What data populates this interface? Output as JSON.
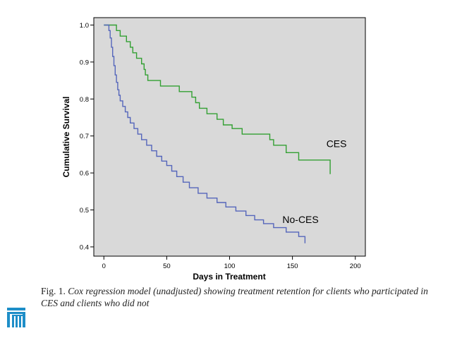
{
  "chart_data": {
    "type": "line",
    "xlabel": "Days in Treatment",
    "ylabel": "Cumulative Survival",
    "xlim": [
      -8,
      208
    ],
    "ylim": [
      0.375,
      1.02
    ],
    "x_ticks": [
      0,
      50,
      100,
      150,
      200
    ],
    "y_ticks": [
      0.4,
      0.5,
      0.6,
      0.7,
      0.8,
      0.9,
      1.0
    ],
    "x_tick_labels": [
      "0",
      "50",
      "100",
      "150",
      "200"
    ],
    "y_tick_labels": [
      "0.4",
      "0.5",
      "0.6",
      "0.7",
      "0.8",
      "0.9",
      "1.0"
    ],
    "grid": false,
    "background": "#d9d9d9",
    "series": [
      {
        "name": "CES",
        "color": "#33a033",
        "label_at": [
          177,
          0.67
        ],
        "step_points": [
          [
            0,
            1.0
          ],
          [
            10,
            1.0
          ],
          [
            10,
            0.985
          ],
          [
            13,
            0.985
          ],
          [
            13,
            0.97
          ],
          [
            18,
            0.97
          ],
          [
            18,
            0.955
          ],
          [
            21,
            0.955
          ],
          [
            21,
            0.94
          ],
          [
            23,
            0.94
          ],
          [
            23,
            0.925
          ],
          [
            26,
            0.925
          ],
          [
            26,
            0.91
          ],
          [
            30,
            0.91
          ],
          [
            30,
            0.895
          ],
          [
            32,
            0.895
          ],
          [
            32,
            0.88
          ],
          [
            33,
            0.88
          ],
          [
            33,
            0.865
          ],
          [
            35,
            0.865
          ],
          [
            35,
            0.85
          ],
          [
            45,
            0.85
          ],
          [
            45,
            0.835
          ],
          [
            60,
            0.835
          ],
          [
            60,
            0.82
          ],
          [
            70,
            0.82
          ],
          [
            70,
            0.805
          ],
          [
            73,
            0.805
          ],
          [
            73,
            0.79
          ],
          [
            76,
            0.79
          ],
          [
            76,
            0.775
          ],
          [
            82,
            0.775
          ],
          [
            82,
            0.76
          ],
          [
            90,
            0.76
          ],
          [
            90,
            0.745
          ],
          [
            95,
            0.745
          ],
          [
            95,
            0.73
          ],
          [
            102,
            0.73
          ],
          [
            102,
            0.72
          ],
          [
            110,
            0.72
          ],
          [
            110,
            0.705
          ],
          [
            132,
            0.705
          ],
          [
            132,
            0.69
          ],
          [
            135,
            0.69
          ],
          [
            135,
            0.675
          ],
          [
            145,
            0.675
          ],
          [
            145,
            0.655
          ],
          [
            155,
            0.655
          ],
          [
            155,
            0.635
          ],
          [
            180,
            0.635
          ],
          [
            180,
            0.597
          ]
        ]
      },
      {
        "name": "No-CES",
        "color": "#5566bb",
        "label_at": [
          142,
          0.465
        ],
        "step_points": [
          [
            0,
            1.0
          ],
          [
            4,
            1.0
          ],
          [
            4,
            0.985
          ],
          [
            5,
            0.985
          ],
          [
            5,
            0.965
          ],
          [
            6,
            0.965
          ],
          [
            6,
            0.94
          ],
          [
            7,
            0.94
          ],
          [
            7,
            0.915
          ],
          [
            8,
            0.915
          ],
          [
            8,
            0.89
          ],
          [
            9,
            0.89
          ],
          [
            9,
            0.865
          ],
          [
            10,
            0.865
          ],
          [
            10,
            0.845
          ],
          [
            11,
            0.845
          ],
          [
            11,
            0.825
          ],
          [
            12,
            0.825
          ],
          [
            12,
            0.81
          ],
          [
            13,
            0.81
          ],
          [
            13,
            0.795
          ],
          [
            15,
            0.795
          ],
          [
            15,
            0.78
          ],
          [
            17,
            0.78
          ],
          [
            17,
            0.765
          ],
          [
            19,
            0.765
          ],
          [
            19,
            0.75
          ],
          [
            21,
            0.75
          ],
          [
            21,
            0.735
          ],
          [
            24,
            0.735
          ],
          [
            24,
            0.72
          ],
          [
            27,
            0.72
          ],
          [
            27,
            0.705
          ],
          [
            30,
            0.705
          ],
          [
            30,
            0.69
          ],
          [
            34,
            0.69
          ],
          [
            34,
            0.675
          ],
          [
            38,
            0.675
          ],
          [
            38,
            0.66
          ],
          [
            42,
            0.66
          ],
          [
            42,
            0.645
          ],
          [
            46,
            0.645
          ],
          [
            46,
            0.632
          ],
          [
            50,
            0.632
          ],
          [
            50,
            0.62
          ],
          [
            54,
            0.62
          ],
          [
            54,
            0.605
          ],
          [
            58,
            0.605
          ],
          [
            58,
            0.59
          ],
          [
            63,
            0.59
          ],
          [
            63,
            0.575
          ],
          [
            68,
            0.575
          ],
          [
            68,
            0.56
          ],
          [
            75,
            0.56
          ],
          [
            75,
            0.545
          ],
          [
            82,
            0.545
          ],
          [
            82,
            0.532
          ],
          [
            90,
            0.532
          ],
          [
            90,
            0.52
          ],
          [
            97,
            0.52
          ],
          [
            97,
            0.508
          ],
          [
            105,
            0.508
          ],
          [
            105,
            0.497
          ],
          [
            113,
            0.497
          ],
          [
            113,
            0.485
          ],
          [
            120,
            0.485
          ],
          [
            120,
            0.473
          ],
          [
            127,
            0.473
          ],
          [
            127,
            0.463
          ],
          [
            135,
            0.463
          ],
          [
            135,
            0.452
          ],
          [
            145,
            0.452
          ],
          [
            145,
            0.44
          ],
          [
            155,
            0.44
          ],
          [
            155,
            0.428
          ],
          [
            160,
            0.428
          ],
          [
            160,
            0.41
          ]
        ]
      }
    ]
  },
  "caption": {
    "fig_num": "Fig. 1.",
    "text": "Cox regression model (unadjusted) showing treatment retention for clients who participated in CES and clients who did not"
  },
  "logo": {
    "icon": "building-columns-icon",
    "color": "#1e8ec8"
  }
}
